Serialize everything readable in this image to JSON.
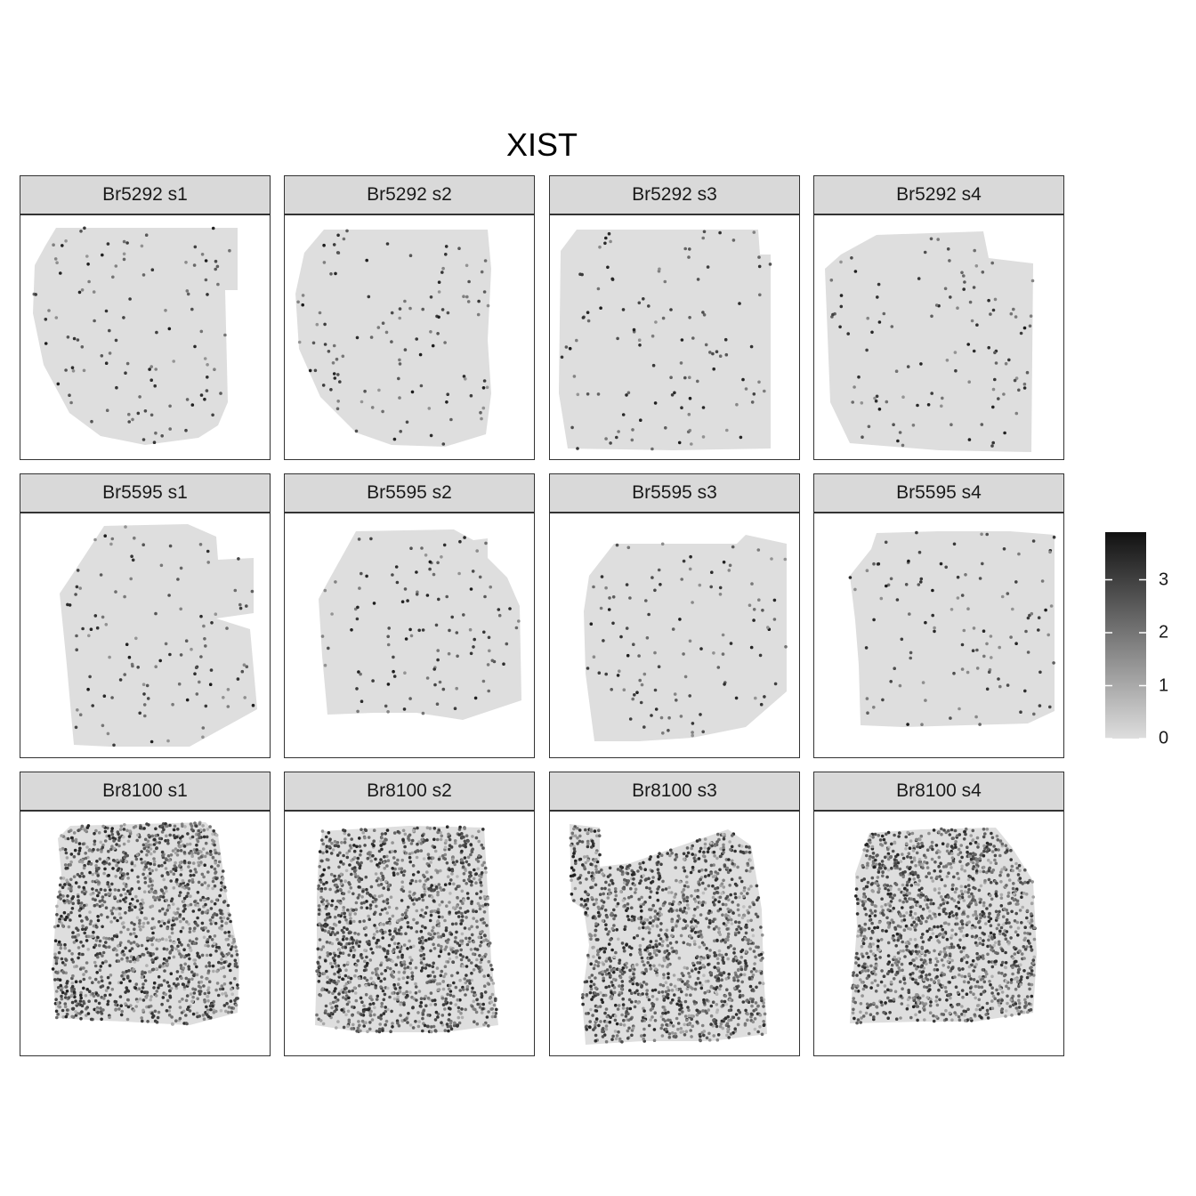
{
  "chart_data": {
    "type": "scatter",
    "title": "XIST",
    "facets": [
      {
        "label": "Br5292 s1",
        "level": "low"
      },
      {
        "label": "Br5292 s2",
        "level": "low"
      },
      {
        "label": "Br5292 s3",
        "level": "low"
      },
      {
        "label": "Br5292 s4",
        "level": "low"
      },
      {
        "label": "Br5595 s1",
        "level": "low"
      },
      {
        "label": "Br5595 s2",
        "level": "low"
      },
      {
        "label": "Br5595 s3",
        "level": "low"
      },
      {
        "label": "Br5595 s4",
        "level": "low"
      },
      {
        "label": "Br8100 s1",
        "level": "high"
      },
      {
        "label": "Br8100 s2",
        "level": "high"
      },
      {
        "label": "Br8100 s3",
        "level": "high"
      },
      {
        "label": "Br8100 s4",
        "level": "high"
      }
    ],
    "color_scale": {
      "min": 0,
      "max": 3.9,
      "breaks": [
        "0",
        "1",
        "2",
        "3"
      ],
      "break_values": [
        0,
        1,
        2,
        3
      ],
      "low_color": "#dedede",
      "high_color": "#111111"
    },
    "legend": "right"
  }
}
